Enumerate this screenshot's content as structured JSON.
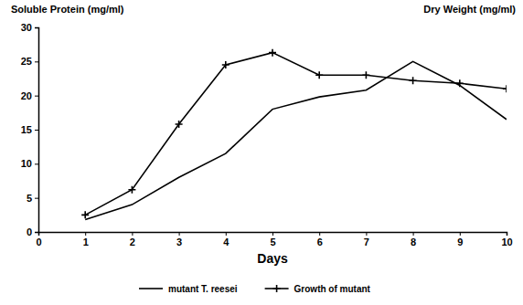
{
  "chart_data": {
    "type": "line",
    "ylabel": "Soluble Protein (mg/ml)",
    "y2label": "Dry Weight (mg/ml)",
    "xlabel": "Days",
    "x": [
      1,
      2,
      3,
      4,
      5,
      6,
      7,
      8,
      9,
      10
    ],
    "series": [
      {
        "name": "mutant T. reesei",
        "color": "#000000",
        "marker": "none",
        "line_style": "solid",
        "values": [
          1.8,
          4.0,
          8.0,
          11.5,
          18.0,
          19.8,
          20.8,
          25.0,
          21.5,
          16.5
        ]
      },
      {
        "name": "Growth of mutant",
        "color": "#000000",
        "marker": "plus",
        "line_style": "solid",
        "values": [
          2.5,
          6.2,
          15.8,
          24.5,
          26.3,
          23.0,
          23.0,
          22.2,
          21.8,
          21.0
        ]
      }
    ],
    "xlim": [
      0,
      10
    ],
    "xticks": [
      0,
      1,
      2,
      3,
      4,
      5,
      6,
      7,
      8,
      9,
      10
    ],
    "ylim": [
      0,
      30
    ],
    "yticks": [
      0,
      5,
      10,
      15,
      20,
      25,
      30
    ],
    "grid": false,
    "legend": "bottom"
  }
}
